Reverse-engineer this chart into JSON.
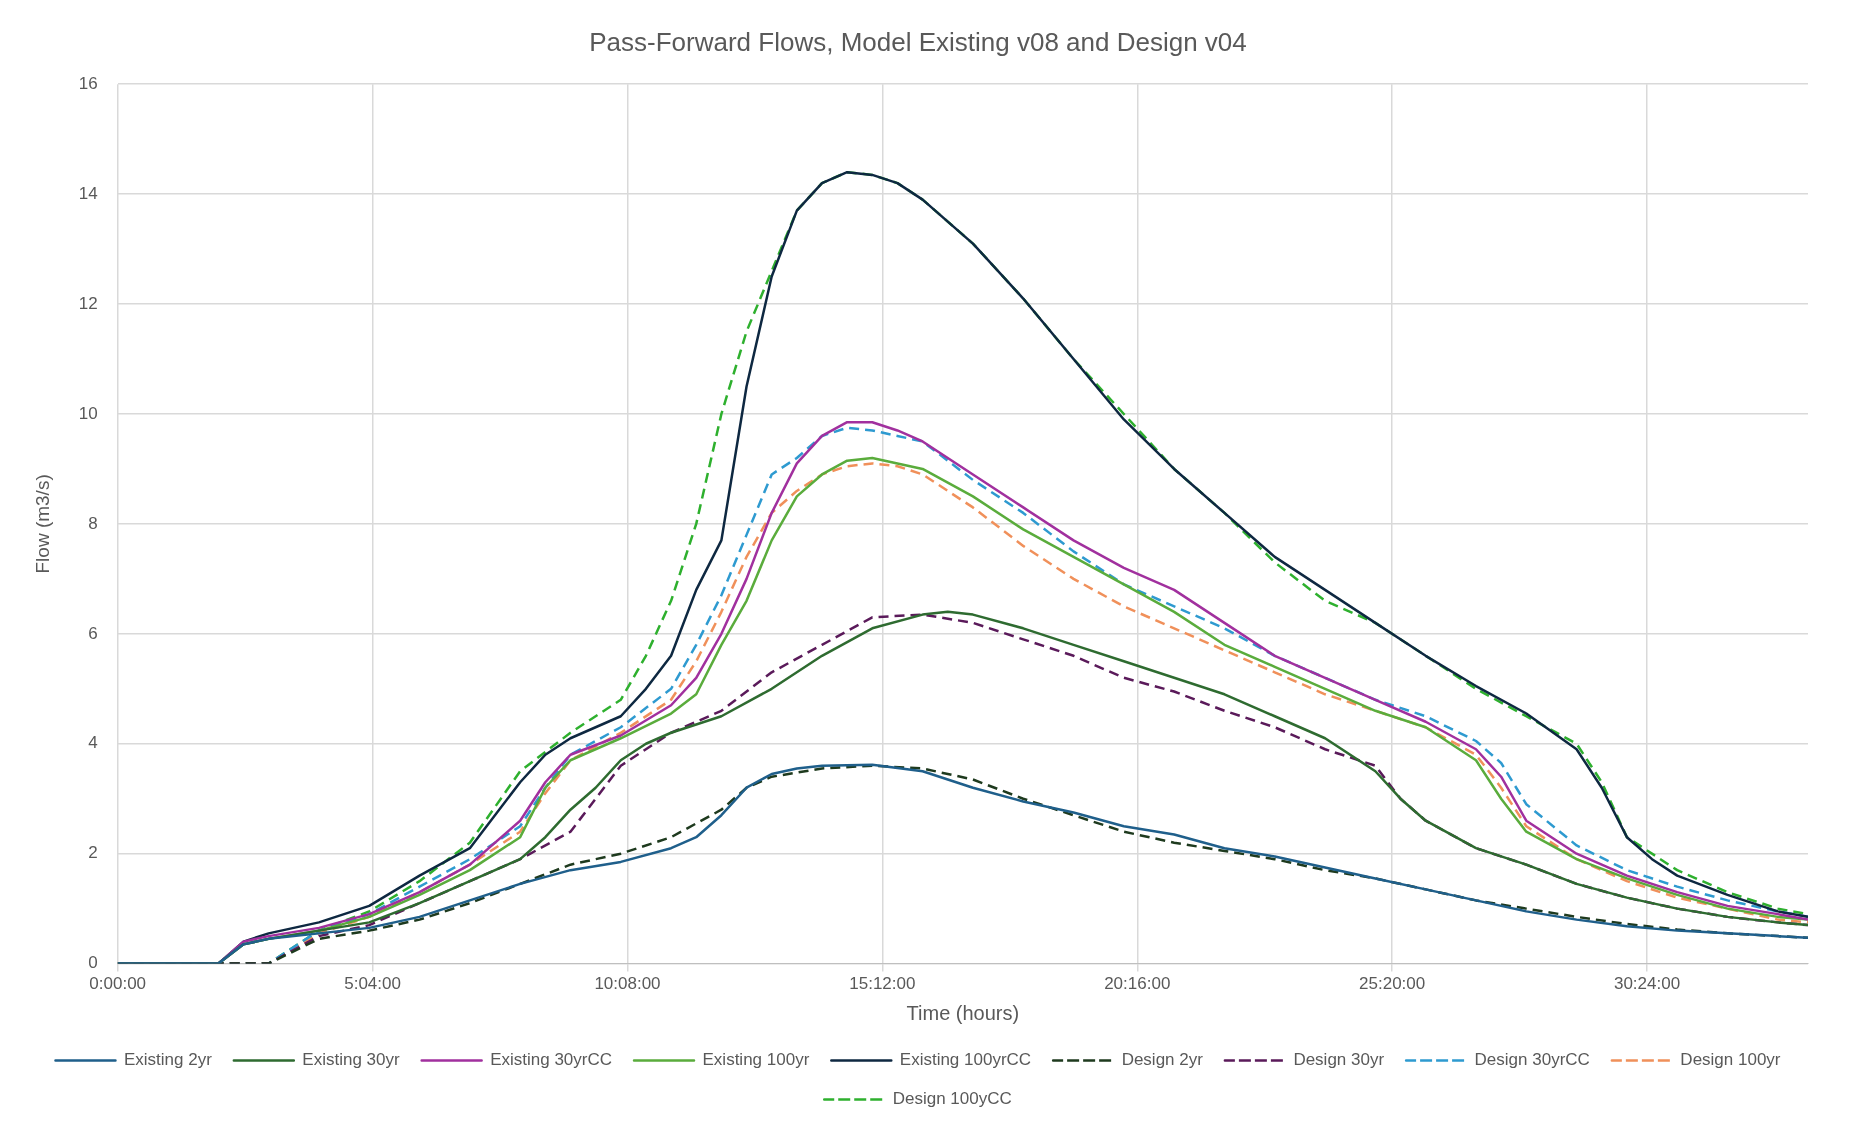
{
  "chart_data": {
    "type": "line",
    "title": "Pass-Forward Flows, Model Existing v08 and Design v04",
    "xlabel": "Time (hours)",
    "ylabel": "Flow (m3/s)",
    "xlim": [
      0,
      33.6
    ],
    "xticks": [
      {
        "value": 0,
        "label": "0:00:00"
      },
      {
        "value": 5.0667,
        "label": "5:04:00"
      },
      {
        "value": 10.1333,
        "label": "10:08:00"
      },
      {
        "value": 15.2,
        "label": "15:12:00"
      },
      {
        "value": 20.2667,
        "label": "20:16:00"
      },
      {
        "value": 25.3333,
        "label": "25:20:00"
      },
      {
        "value": 30.4,
        "label": "30:24:00"
      }
    ],
    "ylim": [
      0,
      16
    ],
    "yticks": [
      0,
      2,
      4,
      6,
      8,
      10,
      12,
      14,
      16
    ],
    "grid": true,
    "legend": "bottom",
    "marker": "none",
    "series": [
      {
        "name": "Existing 2yr",
        "color": "#1f5f8b",
        "line_style": "solid",
        "x": [
          0,
          2,
          2.5,
          3,
          4,
          5,
          6,
          7,
          8,
          9,
          10,
          11,
          11.5,
          12,
          12.5,
          13,
          13.5,
          14,
          15,
          16,
          17,
          18,
          19,
          20,
          21,
          22,
          23,
          24,
          25,
          26,
          27,
          28,
          29,
          30,
          31,
          32,
          33,
          33.6
        ],
        "values": [
          0,
          0,
          0.35,
          0.45,
          0.55,
          0.65,
          0.85,
          1.15,
          1.45,
          1.7,
          1.85,
          2.1,
          2.3,
          2.7,
          3.2,
          3.45,
          3.55,
          3.6,
          3.62,
          3.5,
          3.2,
          2.95,
          2.75,
          2.5,
          2.35,
          2.1,
          1.95,
          1.75,
          1.55,
          1.35,
          1.15,
          0.95,
          0.8,
          0.68,
          0.6,
          0.55,
          0.5,
          0.47
        ]
      },
      {
        "name": "Existing 30yr",
        "color": "#2e6b30",
        "line_style": "solid",
        "x": [
          0,
          2,
          2.5,
          3,
          4,
          5,
          6,
          7,
          8,
          8.5,
          9,
          9.5,
          10,
          10.5,
          11,
          12,
          13,
          14,
          15,
          16,
          16.5,
          17,
          18,
          19,
          20,
          21,
          22,
          23,
          24,
          25,
          25.5,
          26,
          27,
          28,
          29,
          30,
          31,
          32,
          33,
          33.6
        ],
        "values": [
          0,
          0,
          0.35,
          0.45,
          0.6,
          0.75,
          1.1,
          1.5,
          1.9,
          2.3,
          2.8,
          3.2,
          3.7,
          4.0,
          4.2,
          4.5,
          5.0,
          5.6,
          6.1,
          6.35,
          6.4,
          6.35,
          6.1,
          5.8,
          5.5,
          5.2,
          4.9,
          4.5,
          4.1,
          3.5,
          3.0,
          2.6,
          2.1,
          1.8,
          1.45,
          1.2,
          1.0,
          0.85,
          0.75,
          0.7
        ]
      },
      {
        "name": "Existing 30yrCC",
        "color": "#a1309e",
        "line_style": "solid",
        "x": [
          0,
          2,
          2.5,
          3,
          4,
          5,
          6,
          7,
          8,
          8.5,
          9,
          10,
          11,
          11.5,
          12,
          12.5,
          13,
          13.5,
          14,
          14.5,
          15,
          15.5,
          16,
          17,
          18,
          19,
          20,
          21,
          22,
          23,
          24,
          25,
          26,
          27,
          27.5,
          28,
          29,
          30,
          31,
          32,
          33,
          33.6
        ],
        "values": [
          0,
          0,
          0.4,
          0.5,
          0.65,
          0.9,
          1.3,
          1.8,
          2.6,
          3.3,
          3.8,
          4.15,
          4.7,
          5.2,
          6.0,
          7.0,
          8.2,
          9.1,
          9.6,
          9.85,
          9.85,
          9.7,
          9.5,
          8.9,
          8.3,
          7.7,
          7.2,
          6.8,
          6.2,
          5.6,
          5.2,
          4.8,
          4.4,
          3.9,
          3.4,
          2.6,
          2.0,
          1.6,
          1.3,
          1.05,
          0.9,
          0.8
        ]
      },
      {
        "name": "Existing 100yr",
        "color": "#5aac3c",
        "line_style": "solid",
        "x": [
          0,
          2,
          2.5,
          3,
          4,
          5,
          6,
          7,
          8,
          8.5,
          9,
          10,
          11,
          11.5,
          12,
          12.5,
          13,
          13.5,
          14,
          14.5,
          15,
          15.5,
          16,
          17,
          18,
          19,
          20,
          21,
          22,
          23,
          24,
          25,
          26,
          27,
          27.5,
          28,
          29,
          30,
          31,
          32,
          33,
          33.6
        ],
        "values": [
          0,
          0,
          0.35,
          0.45,
          0.6,
          0.85,
          1.25,
          1.7,
          2.3,
          3.2,
          3.7,
          4.1,
          4.55,
          4.9,
          5.8,
          6.6,
          7.7,
          8.5,
          8.9,
          9.15,
          9.2,
          9.1,
          9.0,
          8.5,
          7.9,
          7.4,
          6.9,
          6.4,
          5.8,
          5.4,
          5.0,
          4.6,
          4.3,
          3.7,
          3.0,
          2.4,
          1.9,
          1.55,
          1.25,
          1.0,
          0.85,
          0.8
        ]
      },
      {
        "name": "Existing 100yrCC",
        "color": "#0e2841",
        "line_style": "solid",
        "x": [
          0,
          2,
          2.5,
          3,
          4,
          5,
          6,
          7,
          8,
          8.5,
          9,
          10,
          10.5,
          11,
          11.5,
          12,
          12.5,
          13,
          13.5,
          14,
          14.5,
          15,
          15.5,
          16,
          17,
          18,
          19,
          20,
          21,
          22,
          23,
          24,
          25,
          26,
          27,
          28,
          29,
          29.5,
          30,
          30.5,
          31,
          32,
          33,
          33.6
        ],
        "values": [
          0,
          0,
          0.4,
          0.55,
          0.75,
          1.05,
          1.6,
          2.1,
          3.3,
          3.8,
          4.1,
          4.5,
          5.0,
          5.6,
          6.8,
          7.7,
          10.5,
          12.5,
          13.7,
          14.2,
          14.4,
          14.35,
          14.2,
          13.9,
          13.1,
          12.1,
          11.0,
          9.9,
          9.0,
          8.2,
          7.4,
          6.8,
          6.2,
          5.6,
          5.05,
          4.55,
          3.9,
          3.2,
          2.3,
          1.9,
          1.6,
          1.25,
          0.95,
          0.85
        ]
      },
      {
        "name": "Design 2yr",
        "color": "#1e3a1e",
        "line_style": "dashed",
        "x": [
          0,
          3,
          4,
          5,
          6,
          7,
          8,
          9,
          10,
          11,
          12,
          12.5,
          13,
          14,
          15,
          16,
          17,
          18,
          19,
          20,
          21,
          22,
          23,
          24,
          25,
          26,
          27,
          28,
          29,
          30,
          31,
          32,
          33,
          33.6
        ],
        "values": [
          0,
          0,
          0.45,
          0.6,
          0.8,
          1.1,
          1.45,
          1.8,
          2.0,
          2.3,
          2.8,
          3.2,
          3.4,
          3.55,
          3.6,
          3.55,
          3.35,
          3.0,
          2.7,
          2.4,
          2.2,
          2.05,
          1.9,
          1.7,
          1.55,
          1.35,
          1.15,
          1.0,
          0.85,
          0.72,
          0.62,
          0.55,
          0.5,
          0.47
        ]
      },
      {
        "name": "Design 30yr",
        "color": "#5a1a5a",
        "line_style": "dashed",
        "x": [
          0,
          3,
          4,
          5,
          6,
          7,
          8,
          9,
          9.5,
          10,
          10.5,
          11,
          12,
          13,
          14,
          15,
          16,
          17,
          18,
          19,
          20,
          21,
          22,
          23,
          24,
          25,
          25.5,
          26,
          27,
          28,
          29,
          30,
          31,
          32,
          33,
          33.6
        ],
        "values": [
          0,
          0,
          0.5,
          0.7,
          1.1,
          1.5,
          1.9,
          2.4,
          3.0,
          3.6,
          3.9,
          4.2,
          4.6,
          5.3,
          5.8,
          6.3,
          6.35,
          6.2,
          5.9,
          5.6,
          5.2,
          4.95,
          4.6,
          4.3,
          3.9,
          3.6,
          3.0,
          2.6,
          2.1,
          1.8,
          1.45,
          1.2,
          1.0,
          0.85,
          0.75,
          0.7
        ]
      },
      {
        "name": "Design 30yrCC",
        "color": "#2e9ad0",
        "line_style": "dashed",
        "x": [
          0,
          3,
          4,
          5,
          6,
          7,
          8,
          8.5,
          9,
          10,
          11,
          11.5,
          12,
          12.5,
          13,
          13.5,
          14,
          14.5,
          15,
          15.5,
          16,
          17,
          18,
          19,
          20,
          21,
          22,
          23,
          24,
          25,
          26,
          27,
          27.5,
          28,
          29,
          30,
          31,
          32,
          33,
          33.6
        ],
        "values": [
          0,
          0,
          0.6,
          0.9,
          1.4,
          1.9,
          2.5,
          3.2,
          3.8,
          4.3,
          5.0,
          5.8,
          6.7,
          7.8,
          8.9,
          9.2,
          9.6,
          9.75,
          9.7,
          9.6,
          9.5,
          8.8,
          8.2,
          7.5,
          6.9,
          6.5,
          6.1,
          5.6,
          5.2,
          4.8,
          4.5,
          4.05,
          3.65,
          2.9,
          2.15,
          1.7,
          1.4,
          1.15,
          0.95,
          0.85
        ]
      },
      {
        "name": "Design 100yr",
        "color": "#f0905a",
        "line_style": "dashed",
        "x": [
          0,
          3,
          4,
          5,
          6,
          7,
          8,
          8.5,
          9,
          10,
          11,
          11.5,
          12,
          12.5,
          13,
          13.5,
          14,
          14.5,
          15,
          15.5,
          16,
          17,
          18,
          19,
          20,
          21,
          22,
          23,
          24,
          25,
          26,
          27,
          27.5,
          28,
          29,
          30,
          31,
          32,
          33,
          33.6
        ],
        "values": [
          0,
          0,
          0.55,
          0.85,
          1.3,
          1.8,
          2.4,
          3.1,
          3.7,
          4.2,
          4.8,
          5.5,
          6.4,
          7.4,
          8.2,
          8.6,
          8.9,
          9.05,
          9.1,
          9.05,
          8.9,
          8.3,
          7.6,
          7.0,
          6.5,
          6.1,
          5.7,
          5.3,
          4.9,
          4.6,
          4.3,
          3.8,
          3.2,
          2.5,
          1.9,
          1.5,
          1.2,
          1.0,
          0.8,
          0.75
        ]
      },
      {
        "name": "Design 100yCC",
        "color": "#2eb02e",
        "line_style": "dashed",
        "x": [
          0,
          3,
          4,
          5,
          6,
          7,
          8,
          9,
          10,
          10.5,
          11,
          11.5,
          12,
          12.5,
          13,
          13.5,
          14,
          14.5,
          15,
          15.5,
          16,
          17,
          18,
          19,
          20,
          21,
          22,
          23,
          24,
          25,
          26,
          27,
          28,
          29,
          29.5,
          30,
          31,
          32,
          33,
          33.6
        ],
        "values": [
          0,
          0,
          0.6,
          0.95,
          1.5,
          2.2,
          3.5,
          4.2,
          4.8,
          5.6,
          6.6,
          8.0,
          10.0,
          11.5,
          12.6,
          13.7,
          14.2,
          14.4,
          14.35,
          14.2,
          13.9,
          13.1,
          12.1,
          11.0,
          10.0,
          9.0,
          8.2,
          7.3,
          6.6,
          6.2,
          5.6,
          5.0,
          4.5,
          4.0,
          3.3,
          2.3,
          1.7,
          1.3,
          1.0,
          0.9
        ]
      }
    ]
  }
}
